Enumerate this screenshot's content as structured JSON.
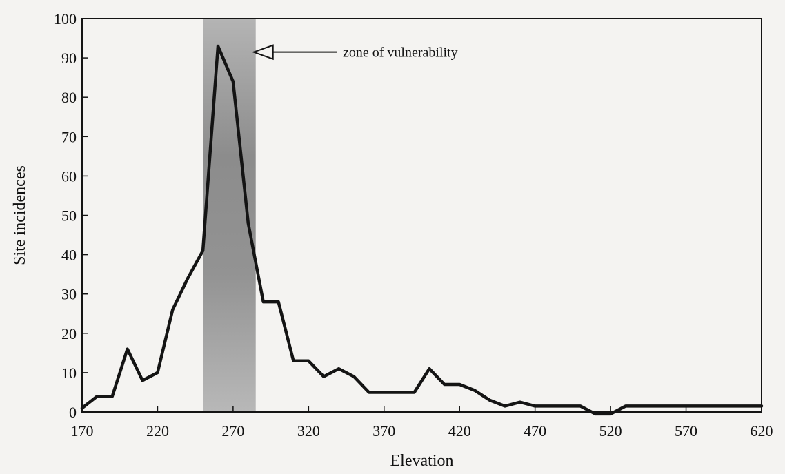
{
  "chart_data": {
    "type": "line",
    "xlabel": "Elevation",
    "ylabel": "Site incidences",
    "xlim": [
      170,
      620
    ],
    "ylim": [
      0,
      100
    ],
    "x_ticks": [
      170,
      220,
      270,
      320,
      370,
      420,
      470,
      520,
      570,
      620
    ],
    "y_ticks": [
      0,
      10,
      20,
      30,
      40,
      50,
      60,
      70,
      80,
      90,
      100
    ],
    "x_tick_labels": [
      "170",
      "220",
      "270",
      "320",
      "370",
      "420",
      "470",
      "520",
      "570",
      "620"
    ],
    "y_tick_labels": [
      "0",
      "10",
      "20",
      "30",
      "40",
      "50",
      "60",
      "70",
      "80",
      "90",
      "100"
    ],
    "grid": false,
    "series": [
      {
        "x": [
          170,
          180,
          190,
          200,
          210,
          220,
          230,
          240,
          250,
          260,
          270,
          280,
          290,
          300,
          310,
          320,
          330,
          340,
          350,
          360,
          370,
          380,
          390,
          400,
          410,
          420,
          430,
          440,
          450,
          460,
          470,
          480,
          490,
          500,
          510,
          520,
          530,
          540,
          550,
          560,
          570,
          580,
          590,
          600,
          610,
          620
        ],
        "values": [
          1,
          4,
          4,
          16,
          8,
          10,
          26,
          34,
          41,
          93,
          84,
          48,
          28,
          28,
          13,
          13,
          9,
          11,
          9,
          5,
          5,
          5,
          5,
          11,
          7,
          7,
          5.5,
          3,
          1.5,
          2.5,
          1.5,
          1.5,
          1.5,
          1.5,
          -0.5,
          -0.5,
          1.5,
          1.5,
          1.5,
          1.5,
          1.5,
          1.5,
          1.5,
          1.5,
          1.5,
          1.5
        ]
      }
    ],
    "highlight_band": {
      "x_start": 250,
      "x_end": 285
    },
    "annotations": [
      {
        "text": "zone of vulnerability",
        "x": 290,
        "y": 92
      }
    ],
    "colors": {
      "line": "#141414",
      "band": "#8f8f8f",
      "background": "#f4f3f1"
    }
  }
}
